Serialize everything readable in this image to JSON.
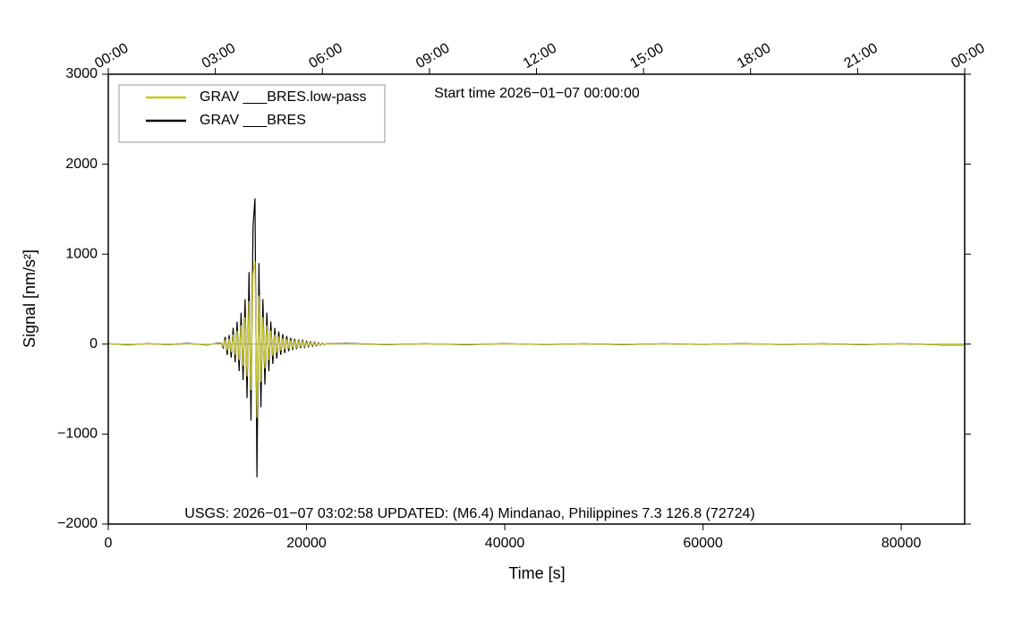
{
  "chart_data": {
    "type": "line",
    "title": "Start time 2026−01−07 00:00:00",
    "annotation": "USGS: 2026−01−07 03:02:58 UPDATED: (M6.4) Mindanao, Philippines 7.3 126.8 (72724)",
    "xlabel": "Time [s]",
    "ylabel": "Signal [nm/s²]",
    "xlim": [
      0,
      86400
    ],
    "ylim": [
      -2000,
      3000
    ],
    "xticks": [
      0,
      20000,
      40000,
      60000,
      80000
    ],
    "yticks": [
      {
        "value": -2000,
        "label": "−2000"
      },
      {
        "value": -1000,
        "label": "−1000"
      },
      0,
      1000,
      2000,
      3000
    ],
    "x2ticks": [
      {
        "value": 0,
        "label": "00:00"
      },
      {
        "value": 10800,
        "label": "03:00"
      },
      {
        "value": 21600,
        "label": "06:00"
      },
      {
        "value": 32400,
        "label": "09:00"
      },
      {
        "value": 43200,
        "label": "12:00"
      },
      {
        "value": 54000,
        "label": "15:00"
      },
      {
        "value": 64800,
        "label": "18:00"
      },
      {
        "value": 75600,
        "label": "21:00"
      },
      {
        "value": 86400,
        "label": "00:00"
      }
    ],
    "legend": "upper left",
    "x": [
      0,
      2000,
      4000,
      6000,
      8000,
      10000,
      11000,
      11400,
      11600,
      11800,
      12000,
      12200,
      12400,
      12600,
      12800,
      13000,
      13200,
      13400,
      13600,
      13800,
      14000,
      14200,
      14400,
      14600,
      14800,
      15000,
      15200,
      15400,
      15600,
      15800,
      16000,
      16200,
      16400,
      16600,
      16800,
      17000,
      17200,
      17400,
      17600,
      17800,
      18000,
      18200,
      18400,
      18600,
      18800,
      19000,
      19200,
      19400,
      19600,
      19800,
      20000,
      20200,
      20400,
      20600,
      20800,
      21000,
      21200,
      21400,
      21600,
      21800,
      22000,
      24000,
      28000,
      32000,
      36000,
      40000,
      44000,
      48000,
      52000,
      56000,
      60000,
      64000,
      68000,
      72000,
      76000,
      80000,
      84000,
      86400
    ],
    "series": [
      {
        "name": "GRAV ___BRES.low-pass",
        "color": "#c8c81e",
        "values": [
          4,
          -5,
          4,
          -5,
          5,
          -6,
          8,
          6,
          -24,
          48,
          -72,
          60,
          -90,
          108,
          -120,
          150,
          -180,
          210,
          -240,
          300,
          -360,
          480,
          -510,
          780,
          920,
          -820,
          540,
          -420,
          300,
          -270,
          210,
          -180,
          150,
          -132,
          108,
          -96,
          84,
          -72,
          66,
          -60,
          54,
          -48,
          42,
          -39,
          36,
          -33,
          30,
          -27,
          24,
          -21,
          18,
          -17,
          15,
          -13,
          12,
          -11,
          9,
          -7,
          6,
          -5,
          4,
          5,
          -4,
          3,
          -4,
          4,
          -3,
          3,
          -4,
          3,
          -3,
          4,
          -3,
          3,
          -4,
          3,
          -6,
          -8
        ]
      },
      {
        "name": "GRAV ___BRES",
        "color": "#000000",
        "values": [
          5,
          -8,
          6,
          -7,
          8,
          -10,
          12,
          10,
          -40,
          80,
          -120,
          100,
          -150,
          180,
          -200,
          250,
          -300,
          350,
          -400,
          500,
          -600,
          800,
          -850,
          1300,
          1620,
          -1480,
          900,
          -700,
          500,
          -450,
          350,
          -300,
          250,
          -220,
          180,
          -160,
          140,
          -120,
          110,
          -100,
          90,
          -80,
          70,
          -65,
          60,
          -55,
          50,
          -45,
          40,
          -35,
          30,
          -28,
          25,
          -22,
          20,
          -18,
          15,
          -12,
          10,
          -8,
          6,
          8,
          -6,
          5,
          -7,
          6,
          -5,
          4,
          -6,
          5,
          -4,
          6,
          -5,
          4,
          -6,
          5,
          -8,
          -10
        ]
      }
    ]
  }
}
